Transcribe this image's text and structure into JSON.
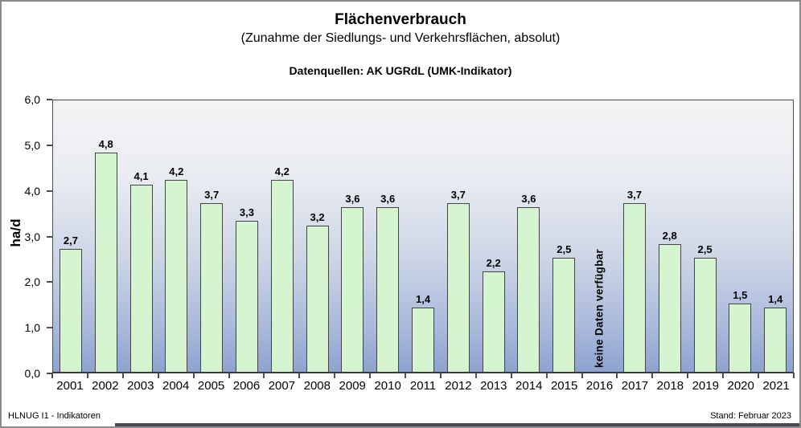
{
  "header": {
    "title": "Flächenverbrauch",
    "subtitle": "(Zunahme der Siedlungs- und Verkehrsflächen, absolut)",
    "source_line": "Datenquellen: AK UGRdL (UMK-Indikator)"
  },
  "chart_data": {
    "type": "bar",
    "title": "Flächenverbrauch (Zunahme der Siedlungs- und Verkehrsflächen, absolut)",
    "xlabel": "",
    "ylabel": "ha/d",
    "ylim": [
      0,
      6
    ],
    "ytick_labels_top_to_bottom": [
      "6,0",
      "5,0",
      "4,0",
      "3,0",
      "2,0",
      "1,0",
      "0,0"
    ],
    "grid": false,
    "legend": "none",
    "categories": [
      "2001",
      "2002",
      "2003",
      "2004",
      "2005",
      "2006",
      "2007",
      "2008",
      "2009",
      "2010",
      "2011",
      "2012",
      "2013",
      "2014",
      "2015",
      "2016",
      "2017",
      "2018",
      "2019",
      "2020",
      "2021"
    ],
    "values": [
      2.7,
      4.8,
      4.1,
      4.2,
      3.7,
      3.3,
      4.2,
      3.2,
      3.6,
      3.6,
      1.4,
      3.7,
      2.2,
      3.6,
      2.5,
      null,
      3.7,
      2.8,
      2.5,
      1.5,
      1.4
    ],
    "value_labels": [
      "2,7",
      "4,8",
      "4,1",
      "4,2",
      "3,7",
      "3,3",
      "4,2",
      "3,2",
      "3,6",
      "3,6",
      "1,4",
      "3,7",
      "2,2",
      "3,6",
      "2,5",
      "",
      "3,7",
      "2,8",
      "2,5",
      "1,5",
      "1,4"
    ],
    "missing_year": "2016",
    "missing_label": "keine Daten verfügbar",
    "colors": {
      "bar_fill": "#d4f5d0",
      "bar_border": "#444444",
      "plot_gradient_top": "#f4f4f5",
      "plot_gradient_bottom": "#8da2cf",
      "axis": "#4d4d4d"
    }
  },
  "footer": {
    "left": "HLNUG I1 - Indikatoren",
    "right": "Stand: Februar 2023"
  }
}
